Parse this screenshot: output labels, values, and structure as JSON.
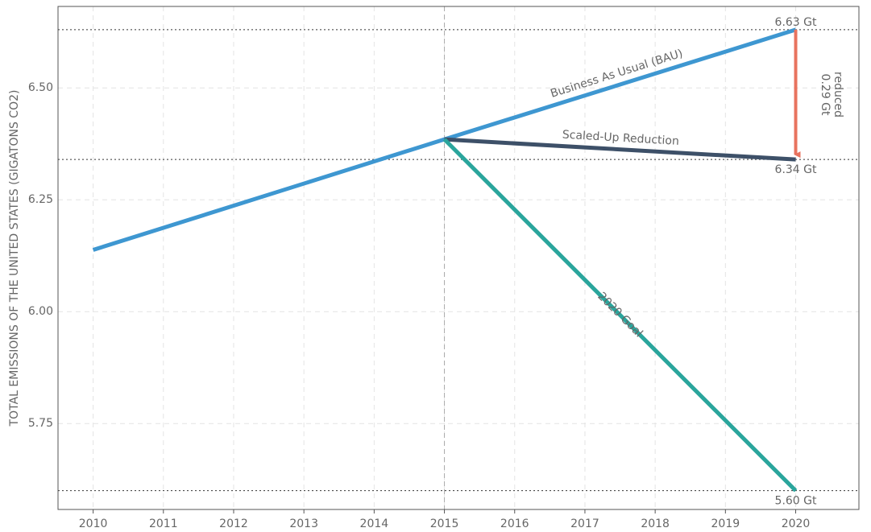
{
  "chart_data": {
    "type": "line",
    "ylabel": "TOTAL EMISSIONS OF THE UNITED STATES (GIGATONS CO2)",
    "xlim": [
      2009.5,
      2020.9
    ],
    "xticks": [
      2010,
      2011,
      2012,
      2013,
      2014,
      2015,
      2016,
      2017,
      2018,
      2019,
      2020
    ],
    "ylim": [
      5.558,
      6.682
    ],
    "yticks": [
      {
        "value": 6.5,
        "label": "6.50"
      },
      6.25,
      {
        "value": 6.0,
        "label": "6.00"
      },
      5.75
    ],
    "grid": true,
    "vline": 2015,
    "series": [
      {
        "name": "Business As Usual (BAU)",
        "color": "#3e97d1",
        "x": [
          2010,
          2015,
          2020
        ],
        "values": [
          6.138,
          6.385,
          6.63
        ]
      },
      {
        "name": "Scaled-Up Reduction",
        "color": "#3d5068",
        "x": [
          2015,
          2020
        ],
        "values": [
          6.385,
          6.34
        ]
      },
      {
        "name": "2020 Goal",
        "color": "#2aa59c",
        "x": [
          2015,
          2020
        ],
        "values": [
          6.385,
          5.6
        ]
      }
    ],
    "reference_lines": [
      {
        "value": 6.63,
        "label": "6.63 Gt"
      },
      {
        "value": 6.34,
        "label": "6.34 Gt"
      },
      {
        "value": 5.6,
        "label": "5.60 Gt"
      }
    ],
    "annotation": {
      "text": [
        "0.29 Gt",
        "reduced"
      ],
      "from": 6.63,
      "to": 6.34,
      "color": "#e8735f"
    }
  }
}
